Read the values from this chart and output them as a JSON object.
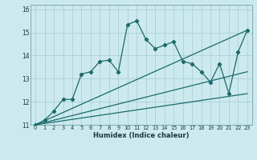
{
  "title": "",
  "xlabel": "Humidex (Indice chaleur)",
  "ylabel": "",
  "bg_color": "#cce9ee",
  "grid_color": "#aad0d8",
  "line_color": "#1a6b6b",
  "xlim": [
    -0.5,
    23.5
  ],
  "ylim": [
    11,
    16.2
  ],
  "yticks": [
    11,
    12,
    13,
    14,
    15,
    16
  ],
  "xticks": [
    0,
    1,
    2,
    3,
    4,
    5,
    6,
    7,
    8,
    9,
    10,
    11,
    12,
    13,
    14,
    15,
    16,
    17,
    18,
    19,
    20,
    21,
    22,
    23
  ],
  "series1_x": [
    0,
    1,
    2,
    3,
    4,
    5,
    6,
    7,
    8,
    9,
    10,
    11,
    12,
    13,
    14,
    15,
    16,
    17,
    18,
    19,
    20,
    21,
    22,
    23
  ],
  "series1_y": [
    11.0,
    11.2,
    11.6,
    12.1,
    12.1,
    13.2,
    13.3,
    13.75,
    13.8,
    13.3,
    15.35,
    15.5,
    14.7,
    14.3,
    14.45,
    14.6,
    13.75,
    13.65,
    13.3,
    12.85,
    13.65,
    12.35,
    14.15,
    15.1
  ],
  "series2_x": [
    0,
    23
  ],
  "series2_y": [
    11.0,
    15.1
  ],
  "series3_x": [
    0,
    23
  ],
  "series3_y": [
    11.0,
    13.3
  ],
  "series4_x": [
    0,
    23
  ],
  "series4_y": [
    11.0,
    12.35
  ]
}
